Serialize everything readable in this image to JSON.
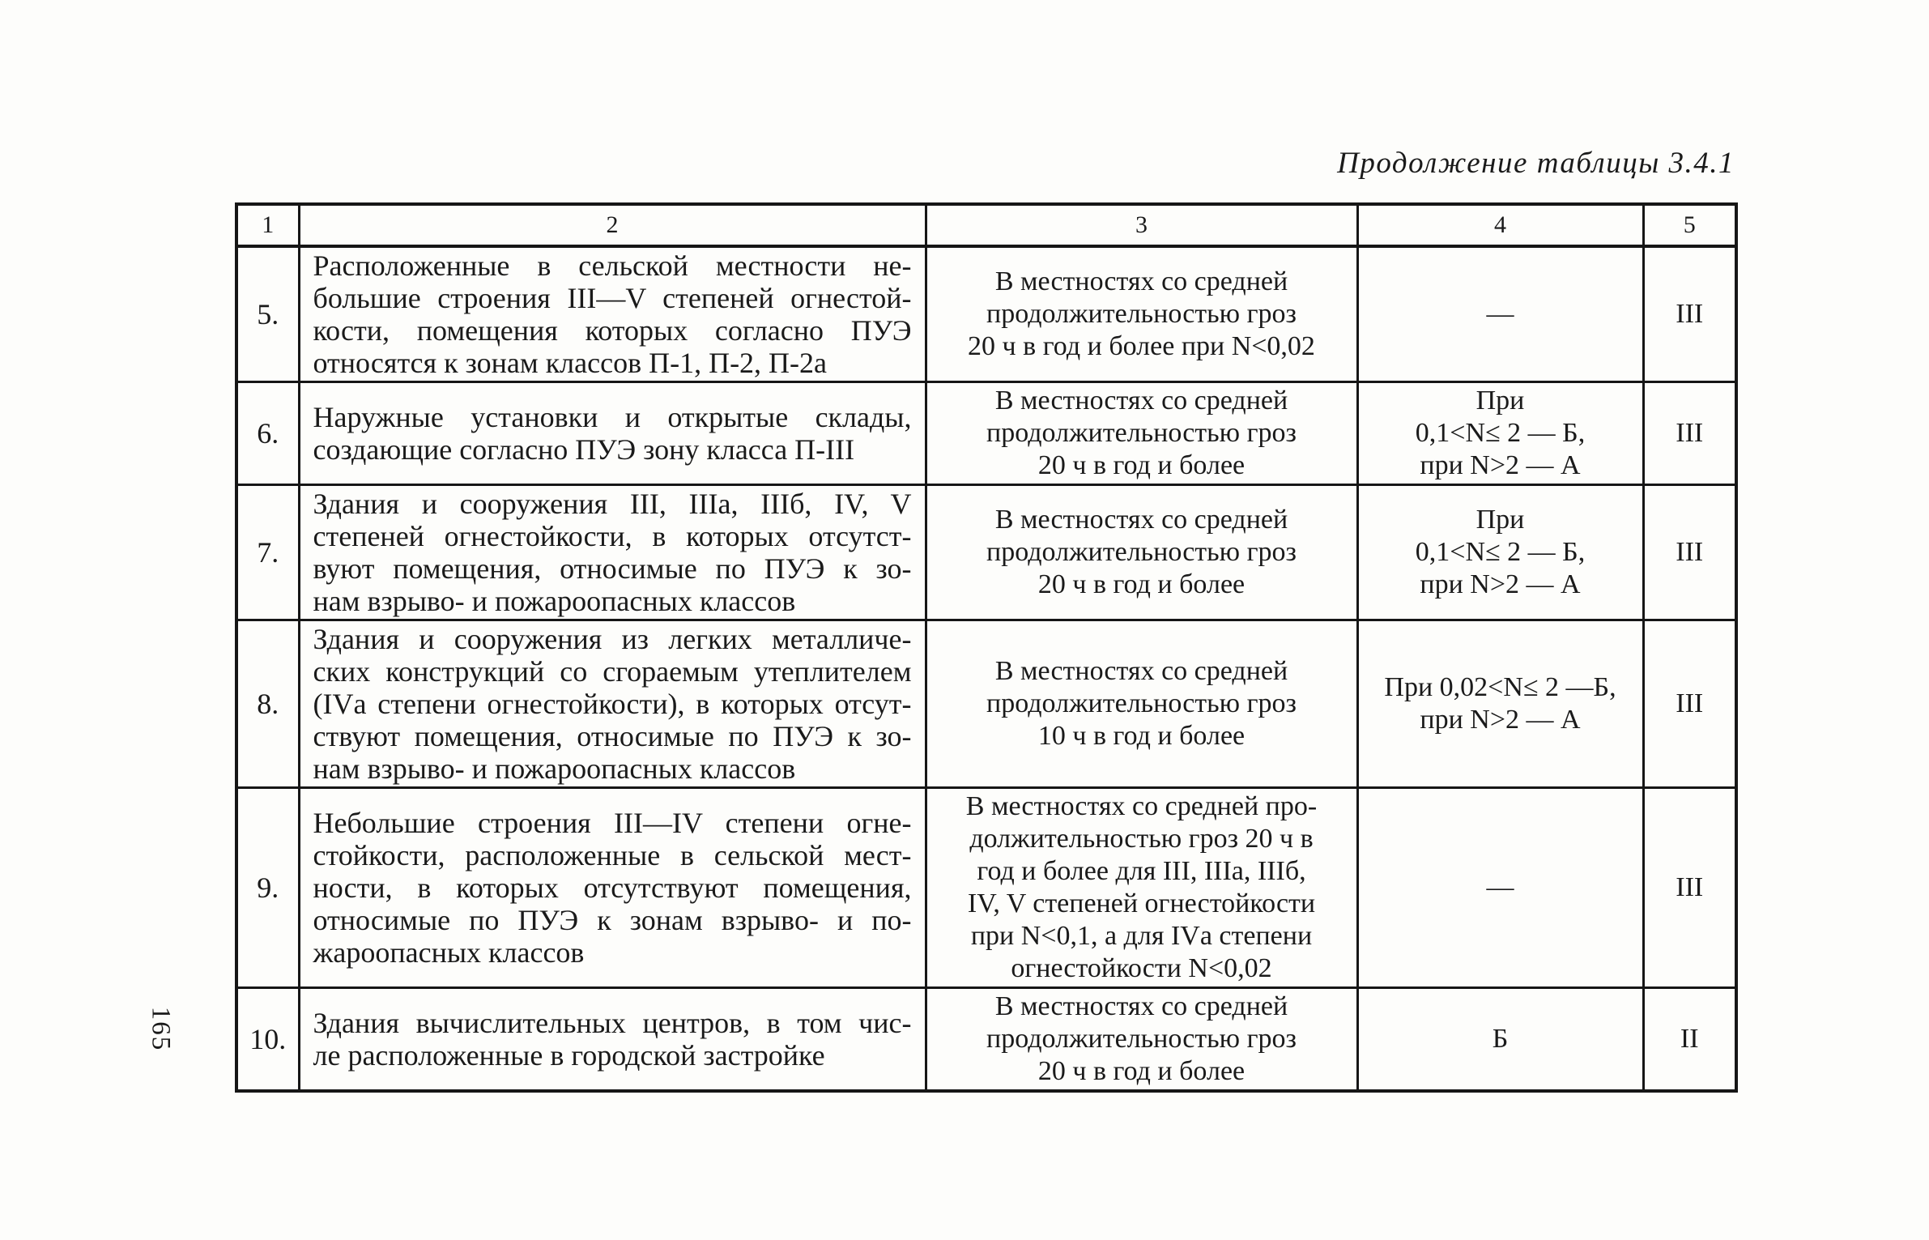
{
  "page": {
    "caption": "Продолжение таблицы 3.4.1",
    "page_number": "165"
  },
  "table": {
    "headers": [
      "1",
      "2",
      "3",
      "4",
      "5"
    ],
    "rows": [
      {
        "num": "5.",
        "object": "Расположенные в сельской местности не-\nбольшие строения III—V степеней огнестой-\nкости, помещения которых согласно ПУЭ\nотносятся к зонам классов П-1, П-2, П-2а",
        "conditions": "В местностях со средней\nпродолжительностью гроз\n20 ч в год и более при N<0,02",
        "zone_type": "—",
        "protection_category": "III"
      },
      {
        "num": "6.",
        "object": "Наружные установки и открытые склады,\nсоздающие согласно ПУЭ зону класса П-III",
        "conditions": "В местностях со средней\nпродолжительностью гроз\n20 ч в год и более",
        "zone_type": "При\n0,1<N≤ 2 — Б,\nпри N>2 — А",
        "protection_category": "III"
      },
      {
        "num": "7.",
        "object": "Здания и сооружения III, IIIа, IIIб, IV, V\nстепеней огнестойкости, в которых отсутст-\nвуют помещения, относимые по ПУЭ к зо-\nнам взрыво- и пожароопасных классов",
        "conditions": "В местностях со средней\nпродолжительностью гроз\n20 ч в год и более",
        "zone_type": "При\n0,1<N≤ 2 — Б,\nпри N>2 — А",
        "protection_category": "III"
      },
      {
        "num": "8.",
        "object": "Здания и сооружения из легких металличе-\nских конструкций со сгораемым утеплителем\n(IVа степени огнестойкости), в которых отсут-\nствуют помещения, относимые по ПУЭ к зо-\nнам взрыво- и пожароопасных классов",
        "conditions": "В местностях со средней\nпродолжительностью гроз\n10 ч в год и более",
        "zone_type": "При 0,02<N≤ 2 —Б,\nпри N>2 — А",
        "protection_category": "III"
      },
      {
        "num": "9.",
        "object": "Небольшие строения III—IV степени огне-\nстойкости, расположенные в сельской мест-\nности, в которых отсутствуют помещения,\nотносимые по ПУЭ к зонам взрыво- и по-\nжароопасных классов",
        "conditions": "В местностях со средней про-\nдолжительностью гроз 20 ч в\nгод и более для III, IIIа, IIIб,\nIV, V степеней огнестойкости\nпри N<0,1, а для IVа степени\nогнестойкости N<0,02",
        "zone_type": "—",
        "protection_category": "III"
      },
      {
        "num": "10.",
        "object": "Здания вычислительных центров, в том чис-\nле расположенные в городской застройке",
        "conditions": "В местностях со средней\nпродолжительностью гроз\n20 ч в год и более",
        "zone_type": "Б",
        "protection_category": "II"
      }
    ]
  }
}
